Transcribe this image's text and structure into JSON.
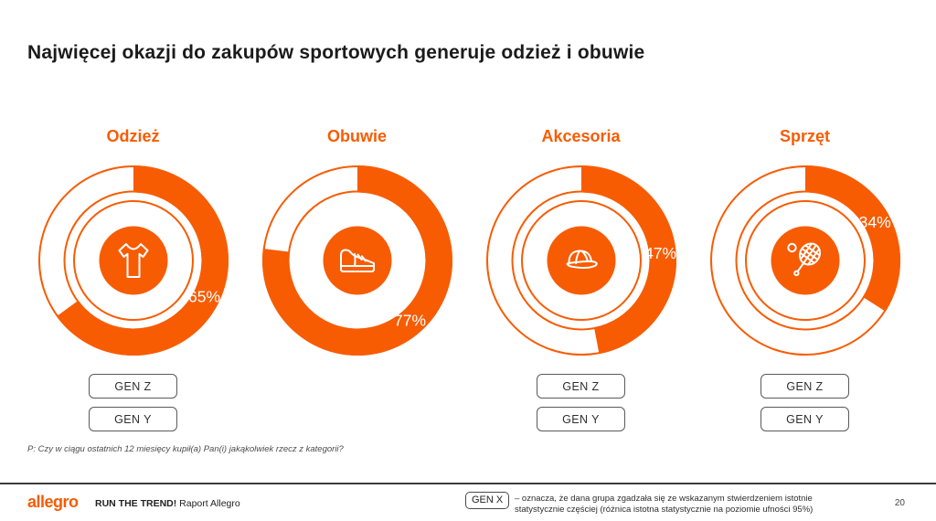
{
  "title": "Najwięcej okazji do zakupów sportowych generuje odzież i obuwie",
  "colors": {
    "accent": "#F75C03",
    "title_text": "#1B1B1B",
    "badge_border": "#5A5A5C",
    "percent_text": "#FFFFFF"
  },
  "chart_data": {
    "type": "donut",
    "unit": "%",
    "fill_direction": "clockwise-from-top",
    "categories": [
      {
        "id": "odziez",
        "label": "Odzież",
        "value": 65,
        "icon": "tshirt-icon",
        "inner_ring": true,
        "badges": [
          "GEN Z",
          "GEN Y"
        ]
      },
      {
        "id": "obuwie",
        "label": "Obuwie",
        "value": 77,
        "icon": "sneaker-icon",
        "inner_ring": false,
        "badges": []
      },
      {
        "id": "akcesoria",
        "label": "Akcesoria",
        "value": 47,
        "icon": "cap-icon",
        "inner_ring": true,
        "badges": [
          "GEN Z",
          "GEN Y"
        ]
      },
      {
        "id": "sprzet",
        "label": "Sprzęt",
        "value": 34,
        "icon": "tennis-racket-icon",
        "inner_ring": true,
        "badges": [
          "GEN Z",
          "GEN Y"
        ]
      }
    ]
  },
  "footnote": "P: Czy w ciągu ostatnich 12 miesięcy kupił(a) Pan(i) jakąkolwiek rzecz z kategorii?",
  "footer": {
    "logo": "allegro",
    "report_title_bold": "RUN THE TREND!",
    "report_title_regular": "Raport Allegro",
    "legend_badge": "GEN X",
    "legend_lines": [
      "– oznacza, że dana grupa zgadzała się ze wskazanym stwierdzeniem istotnie",
      "statystycznie częściej (różnica istotna statystycznie na poziomie ufności 95%)"
    ],
    "page_number": "20"
  }
}
